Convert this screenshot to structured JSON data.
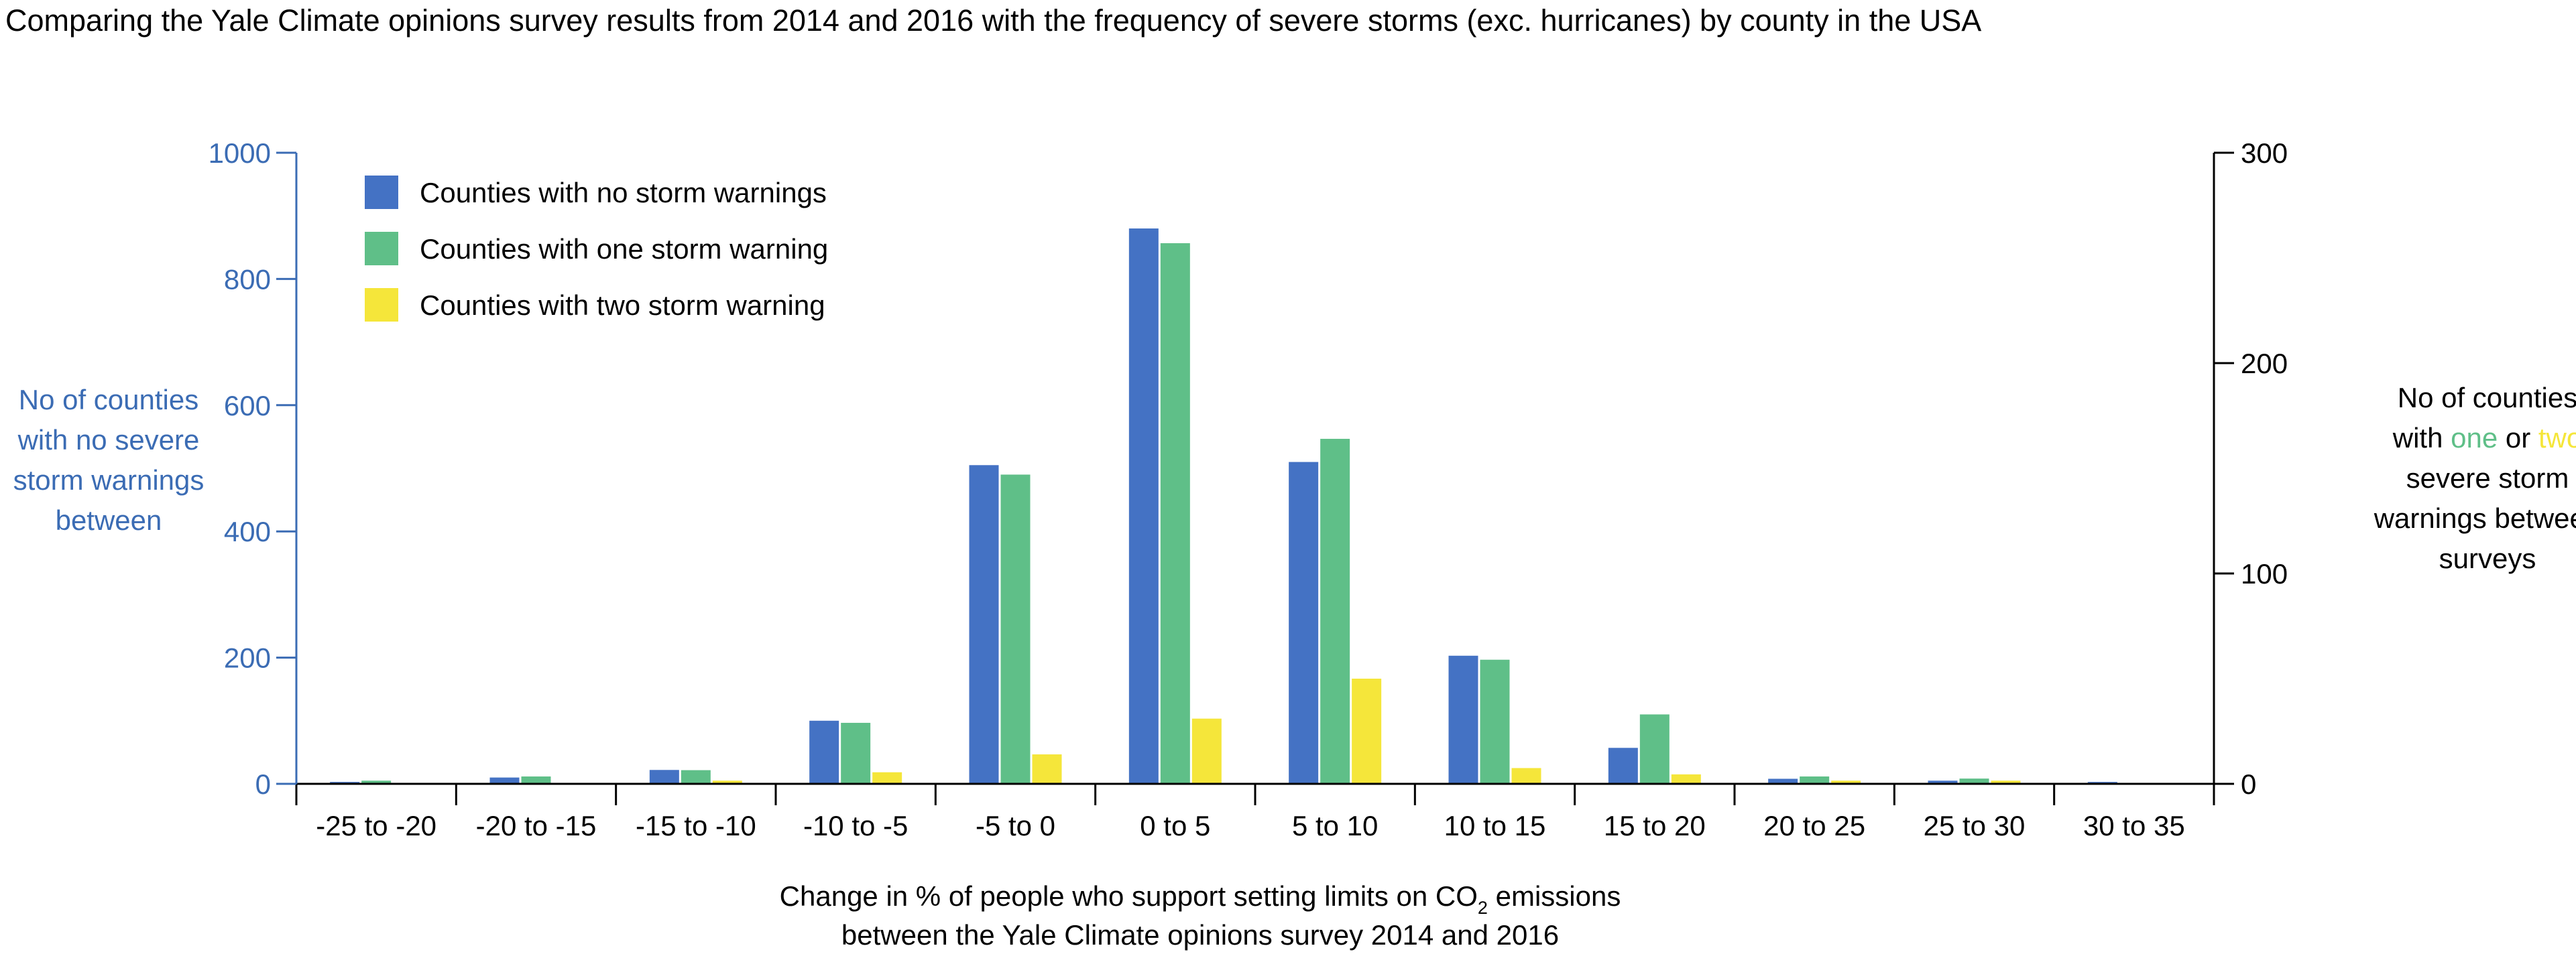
{
  "chart_data": {
    "type": "bar",
    "title": "Comparing the Yale Climate opinions survey results from 2014 and 2016 with the frequency of severe storms (exc. hurricanes) by county in the USA",
    "categories": [
      "-25 to -20",
      "-20 to -15",
      "-15 to -10",
      "-10 to -5",
      "-5 to 0",
      "0 to 5",
      "5 to 10",
      "10 to 15",
      "15 to 20",
      "20 to 25",
      "25 to 30",
      "30 to 35"
    ],
    "series": [
      {
        "name": "Counties with no storm warnings",
        "axis": "left",
        "color": "#4472c4",
        "values": [
          3,
          10,
          22,
          100,
          505,
          880,
          510,
          203,
          57,
          8,
          5,
          3
        ]
      },
      {
        "name": "Counties with one storm warning",
        "axis": "right",
        "color": "#5fbf88",
        "values": [
          1.5,
          3.5,
          6.5,
          29,
          147,
          257,
          164,
          59,
          33,
          3.5,
          2.5,
          0
        ]
      },
      {
        "name": "Counties with two storm warning",
        "axis": "right",
        "color": "#f5e63a",
        "values": [
          0,
          0,
          1.5,
          5.5,
          14,
          31,
          50,
          7.5,
          4.5,
          1.5,
          1.5,
          0
        ]
      }
    ],
    "y_left": {
      "label_lines": [
        "No of counties",
        "with no severe",
        "storm warnings",
        "between"
      ],
      "ylim": [
        0,
        1000
      ],
      "ticks": [
        "0",
        "200",
        "400",
        "600",
        "800",
        "1000"
      ],
      "color": "#3b6cb4"
    },
    "y_right": {
      "label_lines": [
        [
          {
            "t": "No of counties",
            "c": "#000000"
          }
        ],
        [
          {
            "t": "with ",
            "c": "#000000"
          },
          {
            "t": "one",
            "c": "#5fbf88"
          },
          {
            "t": " or ",
            "c": "#000000"
          },
          {
            "t": "two",
            "c": "#f5e63a"
          }
        ],
        [
          {
            "t": "severe storm",
            "c": "#000000"
          }
        ],
        [
          {
            "t": "warnings between",
            "c": "#000000"
          }
        ],
        [
          {
            "t": "surveys",
            "c": "#000000"
          }
        ]
      ],
      "ylim": [
        0,
        300
      ],
      "ticks": [
        "0",
        "100",
        "200",
        "300"
      ],
      "color": "#000000"
    },
    "xlabel": {
      "line1_before": "Change in % of people who support setting limits on CO",
      "line1_sub": "2",
      "line1_after": " emissions",
      "line2": "between the Yale Climate opinions survey 2014 and 2016"
    },
    "legend_position": "top-left",
    "grid": false
  }
}
